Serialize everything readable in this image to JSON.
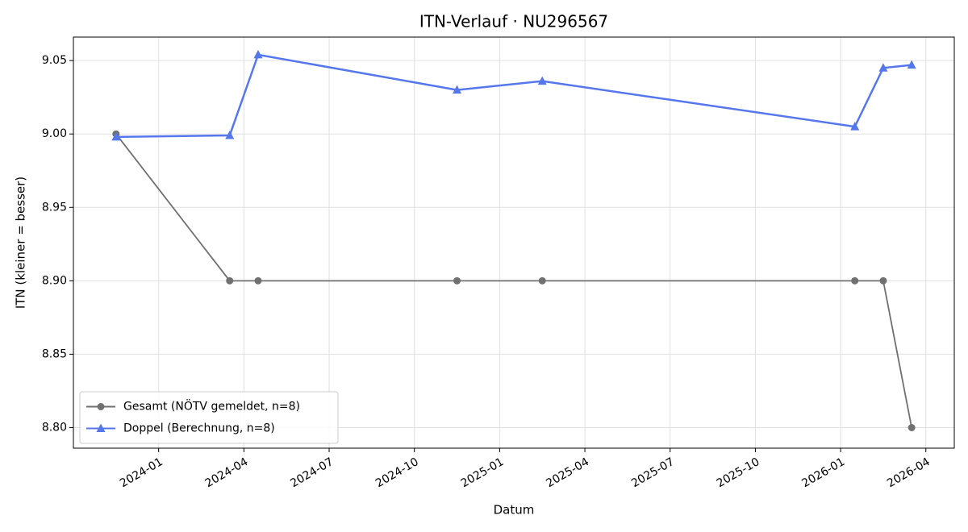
{
  "chart_data": {
    "type": "line",
    "title": "ITN-Verlauf · NU296567",
    "xlabel": "Datum",
    "ylabel": "ITN  (kleiner = besser)",
    "x": [
      "2023-11",
      "2024-03",
      "2024-04",
      "2024-11",
      "2025-02",
      "2026-01",
      "2026-02",
      "2026-03"
    ],
    "series": [
      {
        "name": "Gesamt (NÖTV gemeldet, n=8)",
        "color": "#707070",
        "marker": "circle",
        "values": [
          9.0,
          8.9,
          8.9,
          8.9,
          8.9,
          8.9,
          8.9,
          8.8
        ]
      },
      {
        "name": "Doppel (Berechnung, n=8)",
        "color": "#5577ee",
        "marker": "triangle",
        "values": [
          8.998,
          8.999,
          9.054,
          9.03,
          9.036,
          9.005,
          9.045,
          9.047
        ]
      }
    ],
    "xlim": [
      "2023-10",
      "2026-05"
    ],
    "xticks": [
      "2024-01",
      "2024-04",
      "2024-07",
      "2024-10",
      "2025-01",
      "2025-04",
      "2025-07",
      "2025-10",
      "2026-01",
      "2026-04"
    ],
    "ylim": [
      8.786,
      9.066
    ],
    "yticks": [
      {
        "value": 8.8,
        "label": "8.80"
      },
      {
        "value": 8.85,
        "label": "8.85"
      },
      {
        "value": 8.9,
        "label": "8.90"
      },
      {
        "value": 8.95,
        "label": "8.95"
      },
      {
        "value": 9.0,
        "label": "9.00"
      },
      {
        "value": 9.05,
        "label": "9.05"
      }
    ],
    "grid": true,
    "legend": "lower left"
  }
}
